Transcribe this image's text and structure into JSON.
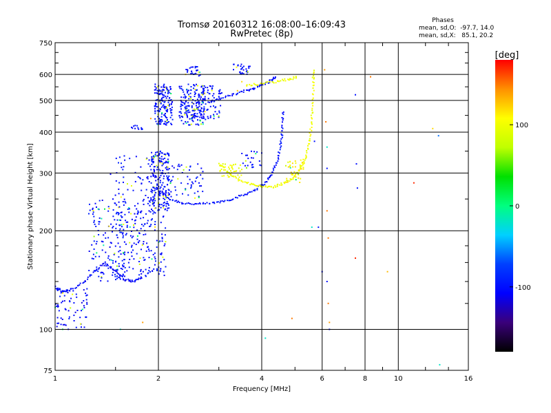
{
  "chart_data": {
    "type": "scatter",
    "title": "Tromsø 20160312 16:08:00–16:09:43",
    "subtitle": "RwPretec (8p)",
    "xlabel": "Frequency [MHz]",
    "ylabel": "Stationary phase Virtual Height [km]",
    "x_scale": "log",
    "y_scale": "log",
    "xlim": [
      1,
      16
    ],
    "ylim": [
      75,
      750
    ],
    "x_ticks": [
      1,
      2,
      4,
      6,
      8,
      10,
      16
    ],
    "x_tick_labels": [
      "1",
      "2",
      "4",
      "6",
      "8",
      "10",
      "16"
    ],
    "y_ticks": [
      75,
      100,
      200,
      300,
      400,
      500,
      600,
      750
    ],
    "y_tick_labels": [
      "75",
      "100",
      "200",
      "300",
      "400",
      "500",
      "600",
      "750"
    ],
    "grid": true,
    "stats_box": {
      "title": "Phases",
      "line1": "mean, sd,O:  -97.7, 14.0",
      "line2": "mean, sd,X:   85.1, 20.2"
    },
    "colorbar": {
      "label": "[deg]",
      "range": [
        -180,
        180
      ],
      "ticks": [
        100,
        0,
        -100
      ],
      "tick_labels": [
        "100",
        "0",
        "-100"
      ],
      "colors": [
        "#000000",
        "#3a007a",
        "#0000ff",
        "#0040ff",
        "#00d0ff",
        "#00ff80",
        "#00e000",
        "#c0ff00",
        "#ffff00",
        "#ff9000",
        "#ff0000"
      ]
    },
    "series": [
      {
        "mode": "O",
        "traces": [
          {
            "kind": "curve",
            "phase": -100,
            "points": [
              [
                2.0,
                265
              ],
              [
                2.15,
                250
              ],
              [
                2.35,
                243
              ],
              [
                2.6,
                241
              ],
              [
                2.9,
                243
              ],
              [
                3.2,
                248
              ],
              [
                3.5,
                256
              ],
              [
                3.8,
                266
              ],
              [
                4.1,
                280
              ],
              [
                4.3,
                300
              ],
              [
                4.45,
                330
              ],
              [
                4.55,
                370
              ],
              [
                4.6,
                410
              ],
              [
                4.62,
                470
              ]
            ]
          },
          {
            "kind": "curve",
            "phase": -100,
            "points": [
              [
                2.8,
                495
              ],
              [
                3.0,
                505
              ],
              [
                3.3,
                520
              ],
              [
                3.6,
                535
              ],
              [
                3.9,
                550
              ],
              [
                4.2,
                570
              ],
              [
                4.4,
                590
              ]
            ]
          },
          {
            "kind": "curve",
            "phase": -105,
            "points": [
              [
                1.0,
                135
              ],
              [
                1.05,
                130
              ],
              [
                1.1,
                132
              ],
              [
                1.2,
                138
              ],
              [
                1.3,
                150
              ],
              [
                1.4,
                160
              ],
              [
                1.5,
                150
              ],
              [
                1.6,
                142
              ],
              [
                1.7,
                140
              ],
              [
                1.8,
                145
              ]
            ]
          },
          {
            "kind": "cloud",
            "phase": -105,
            "x": [
              1.0,
              1.25
            ],
            "y": [
              100,
              135
            ],
            "count": 70
          },
          {
            "kind": "cloud",
            "phase": -100,
            "x": [
              1.25,
              1.6
            ],
            "y": [
              140,
              250
            ],
            "count": 130
          },
          {
            "kind": "cloud",
            "phase": -100,
            "x": [
              1.5,
              2.1
            ],
            "y": [
              145,
              230
            ],
            "count": 200
          },
          {
            "kind": "cloud",
            "phase": -100,
            "x": [
              1.45,
              2.0
            ],
            "y": [
              230,
              340
            ],
            "count": 80
          },
          {
            "kind": "cloud",
            "phase": -100,
            "x": [
              1.9,
              2.15
            ],
            "y": [
              230,
              350
            ],
            "count": 200
          },
          {
            "kind": "cloud",
            "phase": -100,
            "x": [
              1.95,
              2.2
            ],
            "y": [
              420,
              560
            ],
            "count": 170
          },
          {
            "kind": "cloud",
            "phase": -100,
            "x": [
              2.3,
              2.75
            ],
            "y": [
              420,
              560
            ],
            "count": 180
          },
          {
            "kind": "cloud",
            "phase": -100,
            "x": [
              2.1,
              2.7
            ],
            "y": [
              250,
              320
            ],
            "count": 60
          },
          {
            "kind": "cloud",
            "phase": -100,
            "x": [
              2.5,
              3.1
            ],
            "y": [
              440,
              560
            ],
            "count": 90
          },
          {
            "kind": "cloud",
            "phase": -100,
            "x": [
              2.4,
              2.65
            ],
            "y": [
              590,
              640
            ],
            "count": 25
          },
          {
            "kind": "cloud",
            "phase": -100,
            "x": [
              3.3,
              3.7
            ],
            "y": [
              600,
              645
            ],
            "count": 30
          },
          {
            "kind": "cloud",
            "phase": -100,
            "x": [
              3.5,
              4.0
            ],
            "y": [
              310,
              350
            ],
            "count": 25
          },
          {
            "kind": "cloud",
            "phase": -100,
            "x": [
              1.65,
              1.8
            ],
            "y": [
              405,
              420
            ],
            "count": 12
          }
        ]
      },
      {
        "mode": "X",
        "traces": [
          {
            "kind": "curve",
            "phase": 100,
            "points": [
              [
                3.0,
                320
              ],
              [
                3.2,
                300
              ],
              [
                3.45,
                285
              ],
              [
                3.75,
                277
              ],
              [
                4.0,
                272
              ],
              [
                4.3,
                272
              ],
              [
                4.6,
                278
              ],
              [
                4.9,
                288
              ],
              [
                5.15,
                305
              ],
              [
                5.35,
                330
              ],
              [
                5.5,
                370
              ],
              [
                5.58,
                420
              ],
              [
                5.63,
                480
              ],
              [
                5.65,
                560
              ],
              [
                5.66,
                620
              ]
            ]
          },
          {
            "kind": "curve",
            "phase": 100,
            "points": [
              [
                3.6,
                555
              ],
              [
                4.0,
                562
              ],
              [
                4.4,
                570
              ],
              [
                4.8,
                580
              ],
              [
                5.1,
                590
              ]
            ]
          },
          {
            "kind": "cloud",
            "phase": 100,
            "x": [
              3.0,
              3.5
            ],
            "y": [
              290,
              320
            ],
            "count": 40
          },
          {
            "kind": "cloud",
            "phase": 110,
            "x": [
              4.7,
              5.3
            ],
            "y": [
              280,
              330
            ],
            "count": 40
          }
        ]
      },
      {
        "mode": "scattered",
        "traces": [
          {
            "kind": "points",
            "points": [
              [
                6.1,
                620,
                140
              ],
              [
                6.15,
                430,
                150
              ],
              [
                6.2,
                360,
                -20
              ],
              [
                6.2,
                310,
                -100
              ],
              [
                6.2,
                230,
                150
              ],
              [
                6.25,
                190,
                150
              ],
              [
                6.2,
                140,
                -100
              ],
              [
                6.25,
                120,
                150
              ],
              [
                6.3,
                100,
                -100
              ],
              [
                6.3,
                105,
                140
              ],
              [
                7.5,
                520,
                -100
              ],
              [
                7.6,
                270,
                -100
              ],
              [
                7.55,
                320,
                -100
              ],
              [
                7.5,
                165,
                170
              ],
              [
                8.3,
                590,
                150
              ],
              [
                9.3,
                150,
                130
              ],
              [
                11.1,
                280,
                170
              ],
              [
                12.6,
                410,
                120
              ],
              [
                13.1,
                390,
                -60
              ],
              [
                13.2,
                78,
                -20
              ],
              [
                4.1,
                94,
                -20
              ],
              [
                4.9,
                108,
                150
              ],
              [
                5.6,
                205,
                -20
              ],
              [
                5.85,
                205,
                -100
              ],
              [
                5.7,
                375,
                -100
              ],
              [
                6.0,
                150,
                -100
              ],
              [
                1.8,
                105,
                140
              ],
              [
                1.9,
                440,
                140
              ],
              [
                2.4,
                600,
                120
              ],
              [
                3.5,
                570,
                120
              ],
              [
                3.4,
                535,
                130
              ],
              [
                1.55,
                100,
                -20
              ]
            ]
          }
        ]
      }
    ]
  }
}
